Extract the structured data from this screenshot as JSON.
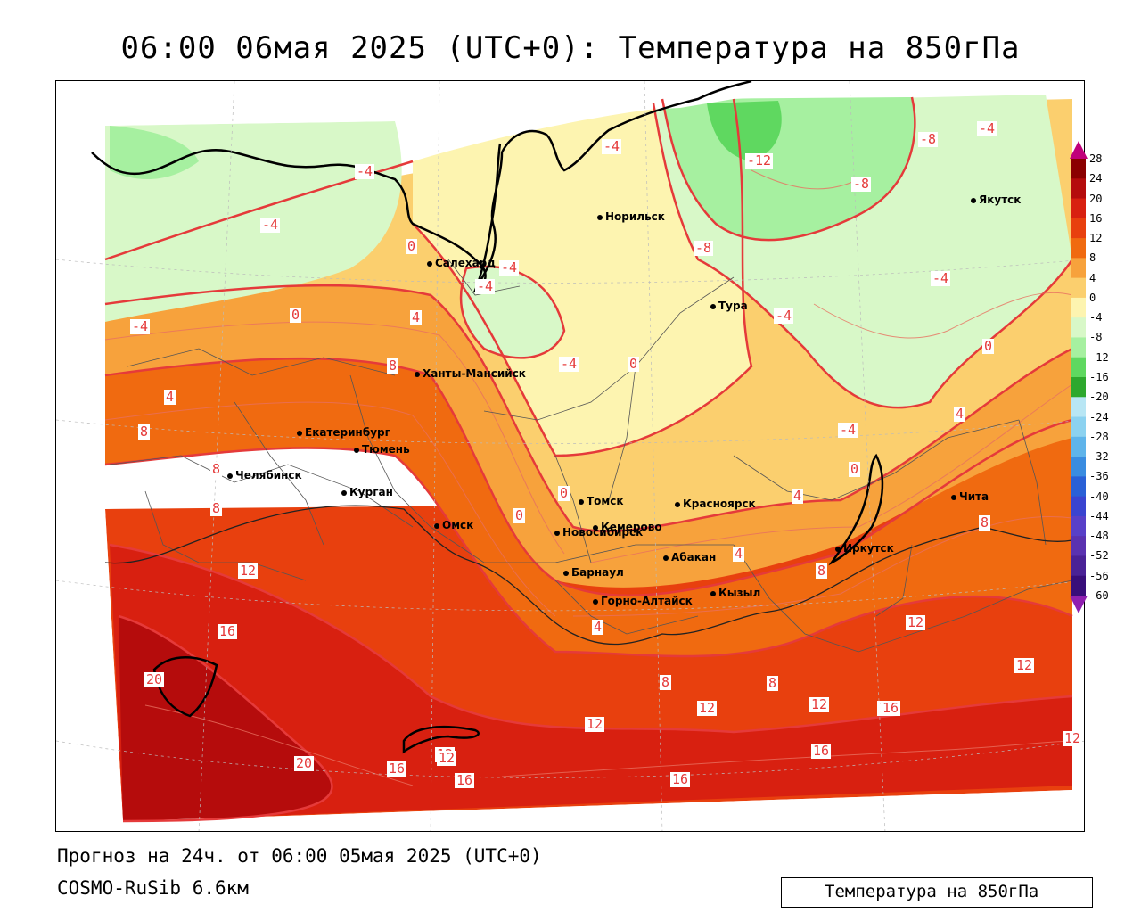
{
  "title": "06:00 06мая 2025 (UTC+0): Температура на 850гПа",
  "footer": {
    "forecast": "Прогноз на 24ч. от 06:00 05мая 2025 (UTC+0)",
    "model": "COSMO-RuSib 6.6км"
  },
  "legend": {
    "label": "Температура на 850гПа",
    "line_color": "#e53a3a"
  },
  "colorbar": {
    "labels": [
      "28",
      "24",
      "20",
      "16",
      "12",
      "8",
      "4",
      "0",
      "-4",
      "-8",
      "-12",
      "-16",
      "-20",
      "-24",
      "-28",
      "-32",
      "-36",
      "-40",
      "-44",
      "-48",
      "-52",
      "-56",
      "-60"
    ],
    "colors": [
      "#c0007a",
      "#8b0000",
      "#b50c0c",
      "#d82010",
      "#e8400e",
      "#f06a10",
      "#f7a23c",
      "#fbcf6e",
      "#fdf4b0",
      "#d8f8c8",
      "#a6f0a0",
      "#5fd860",
      "#2ea82e",
      "#b8e6f4",
      "#8cd2f0",
      "#5fb4ea",
      "#3a8ce0",
      "#2a60d6",
      "#3a44d0",
      "#5840c8",
      "#5a32b0",
      "#4a2296",
      "#380e7a",
      "#9020b0"
    ]
  },
  "cities": [
    {
      "name": "Норильск"
    },
    {
      "name": "Якутск"
    },
    {
      "name": "Салехард"
    },
    {
      "name": "Тура"
    },
    {
      "name": "Ханты-Мансийск"
    },
    {
      "name": "Екатеринбург"
    },
    {
      "name": "Тюмень"
    },
    {
      "name": "Челябинск"
    },
    {
      "name": "Курган"
    },
    {
      "name": "Омск"
    },
    {
      "name": "Томск"
    },
    {
      "name": "Красноярск"
    },
    {
      "name": "Новосибирск"
    },
    {
      "name": "Кемерово"
    },
    {
      "name": "Абакан"
    },
    {
      "name": "Иркутск"
    },
    {
      "name": "Чита"
    },
    {
      "name": "Барнаул"
    },
    {
      "name": "Кызыл"
    },
    {
      "name": "Горно-Алтайск"
    }
  ],
  "isotherm_labels": [
    "-4",
    "-4",
    "-4",
    "-4",
    "-4",
    "-4",
    "-4",
    "-4",
    "-4",
    "-4",
    "-4",
    "-8",
    "-8",
    "-8",
    "-12",
    "0",
    "0",
    "0",
    "0",
    "0",
    "0",
    "0",
    "4",
    "4",
    "4",
    "4",
    "4",
    "4",
    "8",
    "8",
    "8",
    "8",
    "8",
    "8",
    "8",
    "8",
    "12",
    "12",
    "12",
    "12",
    "12",
    "12",
    "12",
    "12",
    "12",
    "16",
    "16",
    "16",
    "16",
    "16",
    "16",
    "16",
    "20",
    "20"
  ]
}
